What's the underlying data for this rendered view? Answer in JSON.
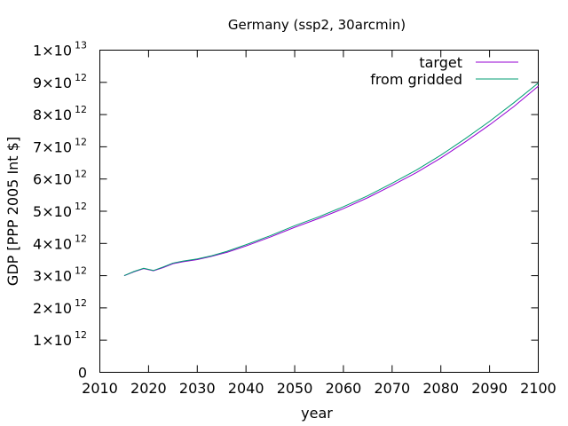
{
  "chart_data": {
    "type": "line",
    "title": "Germany (ssp2, 30arcmin)",
    "xlabel": "year",
    "ylabel": "GDP [PPP 2005 Int $]",
    "xlim": [
      2010,
      2100
    ],
    "ylim": [
      0,
      10000000000000
    ],
    "x_ticks": [
      "2010",
      "2020",
      "2030",
      "2040",
      "2050",
      "2060",
      "2070",
      "2080",
      "2090",
      "2100"
    ],
    "y_ticks": [
      {
        "mantissa": "0",
        "exp": ""
      },
      {
        "mantissa": "1×10",
        "exp": "12"
      },
      {
        "mantissa": "2×10",
        "exp": "12"
      },
      {
        "mantissa": "3×10",
        "exp": "12"
      },
      {
        "mantissa": "4×10",
        "exp": "12"
      },
      {
        "mantissa": "5×10",
        "exp": "12"
      },
      {
        "mantissa": "6×10",
        "exp": "12"
      },
      {
        "mantissa": "7×10",
        "exp": "12"
      },
      {
        "mantissa": "8×10",
        "exp": "12"
      },
      {
        "mantissa": "9×10",
        "exp": "12"
      },
      {
        "mantissa": "1×10",
        "exp": "13"
      }
    ],
    "legend_position": "top-right",
    "grid": false,
    "series": [
      {
        "name": "target",
        "color": "#9400d3",
        "x": [
          2015,
          2017,
          2019,
          2021,
          2023,
          2025,
          2027,
          2030,
          2033,
          2036,
          2040,
          2045,
          2050,
          2055,
          2060,
          2065,
          2070,
          2075,
          2080,
          2085,
          2090,
          2095,
          2100
        ],
        "y": [
          3000000000000.0,
          3120000000000.0,
          3220000000000.0,
          3150000000000.0,
          3250000000000.0,
          3370000000000.0,
          3430000000000.0,
          3500000000000.0,
          3600000000000.0,
          3720000000000.0,
          3920000000000.0,
          4200000000000.0,
          4500000000000.0,
          4780000000000.0,
          5080000000000.0,
          5420000000000.0,
          5800000000000.0,
          6200000000000.0,
          6650000000000.0,
          7150000000000.0,
          7680000000000.0,
          8250000000000.0,
          8880000000000.0
        ]
      },
      {
        "name": "from gridded",
        "color": "#009e73",
        "x": [
          2015,
          2017,
          2019,
          2021,
          2023,
          2025,
          2027,
          2030,
          2033,
          2036,
          2040,
          2045,
          2050,
          2055,
          2060,
          2065,
          2070,
          2075,
          2080,
          2085,
          2090,
          2095,
          2100
        ],
        "y": [
          3000000000000.0,
          3130000000000.0,
          3230000000000.0,
          3160000000000.0,
          3270000000000.0,
          3390000000000.0,
          3450000000000.0,
          3520000000000.0,
          3620000000000.0,
          3750000000000.0,
          3960000000000.0,
          4240000000000.0,
          4550000000000.0,
          4830000000000.0,
          5140000000000.0,
          5480000000000.0,
          5870000000000.0,
          6280000000000.0,
          6740000000000.0,
          7250000000000.0,
          7790000000000.0,
          8370000000000.0,
          8980000000000.0
        ]
      }
    ]
  }
}
